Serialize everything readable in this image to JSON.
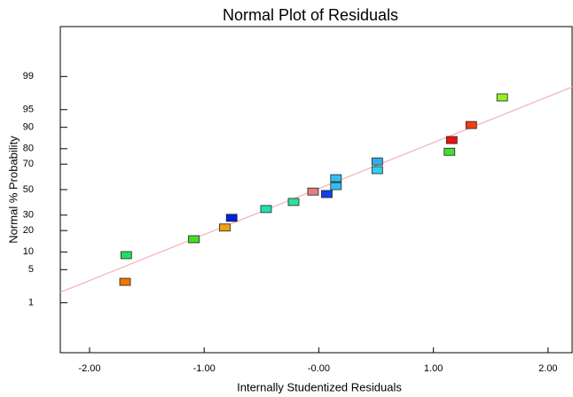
{
  "chart_data": {
    "type": "scatter",
    "title": "Normal Plot of Residuals",
    "x_label": "Internally Studentized Residuals",
    "y_label": "Normal % Probability",
    "y_scale": "probit",
    "x": [
      -1.69,
      -1.68,
      -1.09,
      -0.82,
      -0.76,
      -0.46,
      -0.22,
      -0.05,
      0.07,
      0.15,
      0.15,
      0.51,
      0.51,
      1.14,
      1.16,
      1.33,
      1.6
    ],
    "values": [
      2.9,
      8.9,
      15.4,
      21.8,
      28.1,
      34.5,
      40.0,
      48.4,
      46.4,
      52.9,
      59.3,
      65.6,
      71.9,
      78.2,
      84.6,
      90.8,
      97.1
    ],
    "colors": [
      "#f07800",
      "#20e060",
      "#40e020",
      "#f0a010",
      "#0020e0",
      "#20e0b0",
      "#30e0a0",
      "#e08080",
      "#1040f0",
      "#30c0f0",
      "#30c0f0",
      "#30d0f0",
      "#30b0e8",
      "#40e030",
      "#f01010",
      "#f04010",
      "#90f020"
    ],
    "reference_line": {
      "x": [
        -2.255,
        2.21
      ],
      "y": [
        1.74,
        98.26
      ],
      "color": "#f4b0b0"
    },
    "xlim": [
      -2.255,
      2.21
    ],
    "ylim": [
      0.04,
      99.96
    ],
    "xticks": [
      {
        "value": -2,
        "label": "-2.00"
      },
      {
        "value": -1,
        "label": "-1.00"
      },
      {
        "value": 0,
        "label": "-0.00"
      },
      {
        "value": 1,
        "label": "1.00"
      },
      {
        "value": 2,
        "label": "2.00"
      }
    ],
    "yticks": [
      1,
      5,
      10,
      20,
      30,
      50,
      70,
      80,
      90,
      95,
      99
    ]
  }
}
